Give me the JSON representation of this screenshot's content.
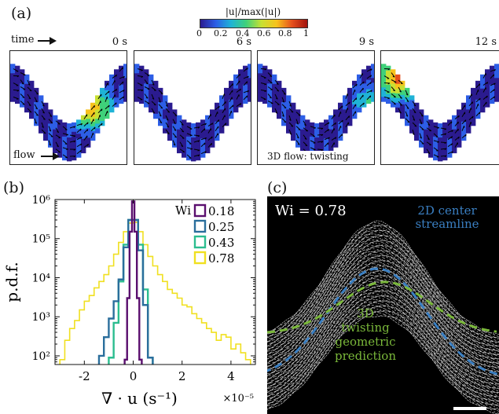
{
  "panel_a": {
    "label": "(a)",
    "colorbar": {
      "title": "|u|/max(|u|)",
      "ticks": [
        "0",
        "0.2",
        "0.4",
        "0.6",
        "0.8",
        "1"
      ],
      "colors": [
        "#2b1b8f",
        "#2d5ee6",
        "#1fb3d6",
        "#3fd17a",
        "#c8e032",
        "#f7c21c",
        "#e5501e",
        "#a1130e"
      ]
    },
    "time_label": "time",
    "flow_label": "flow",
    "frames": [
      {
        "time": "0 s",
        "caption": ""
      },
      {
        "time": "6 s",
        "caption": ""
      },
      {
        "time": "9 s",
        "caption": "3D flow: twisting"
      },
      {
        "time": "12 s",
        "caption": ""
      }
    ]
  },
  "panel_b": {
    "label": "(b)",
    "chart_data": {
      "type": "line",
      "title": "",
      "xlabel": "∇ · u (s⁻¹)",
      "x_scale_label": "×10⁻⁵",
      "ylabel": "p.d.f.",
      "xlim": [
        -3.2,
        5
      ],
      "ylim": [
        60,
        1000000
      ],
      "log_y": true,
      "x_ticks": [
        "-2",
        "0",
        "2",
        "4"
      ],
      "y_ticks": [
        "10²",
        "10³",
        "10⁴",
        "10⁵",
        "10⁶"
      ],
      "legend_title": "Wi",
      "legend_position": "top-right",
      "series": [
        {
          "name": "0.78",
          "color": "#f0e020",
          "x": [
            -2.9,
            -2.7,
            -2.5,
            -2.3,
            -2.1,
            -1.9,
            -1.7,
            -1.5,
            -1.3,
            -1.1,
            -0.9,
            -0.7,
            -0.5,
            -0.3,
            -0.1,
            0.1,
            0.3,
            0.5,
            0.7,
            0.9,
            1.1,
            1.3,
            1.5,
            1.7,
            1.9,
            2.1,
            2.3,
            2.5,
            2.7,
            2.9,
            3.1,
            3.3,
            3.5,
            3.7,
            3.9,
            4.1,
            4.3,
            4.5,
            4.7
          ],
          "y": [
            80,
            250,
            500,
            800,
            1500,
            2500,
            3500,
            5500,
            8000,
            12000,
            20000,
            40000,
            80000,
            150000,
            250000,
            260000,
            150000,
            70000,
            35000,
            20000,
            12000,
            8000,
            5000,
            4000,
            3000,
            2000,
            1800,
            1200,
            900,
            700,
            500,
            400,
            250,
            350,
            300,
            150,
            200,
            120,
            80
          ]
        },
        {
          "name": "0.43",
          "color": "#2bbd8f",
          "x": [
            -0.9,
            -0.7,
            -0.5,
            -0.3,
            -0.1,
            0.1,
            0.3,
            0.5,
            0.7
          ],
          "y": [
            90,
            700,
            8000,
            70000,
            300000,
            300000,
            70000,
            5000,
            90
          ]
        },
        {
          "name": "0.25",
          "color": "#2a6e9c",
          "x": [
            -1.3,
            -1.1,
            -0.9,
            -0.7,
            -0.5,
            -0.3,
            -0.1,
            0.1,
            0.3,
            0.5,
            0.7
          ],
          "y": [
            100,
            300,
            900,
            2500,
            9000,
            60000,
            300000,
            300000,
            50000,
            2000,
            90
          ]
        },
        {
          "name": "0.18",
          "color": "#5a0f6e",
          "x": [
            -0.3,
            -0.2,
            -0.1,
            0.0,
            0.1,
            0.2,
            0.3
          ],
          "y": [
            80,
            3000,
            150000,
            900000,
            150000,
            3000,
            80
          ]
        }
      ]
    }
  },
  "panel_c": {
    "label": "(c)",
    "wi_text": "Wi = 0.78",
    "center_label_line1": "2D center",
    "center_label_line2": "streamline",
    "center_color": "#3a7fc2",
    "pred_label_line1": "3D",
    "pred_label_line2": "twisting",
    "pred_label_line3": "geometric",
    "pred_label_line4": "prediction",
    "pred_color": "#7ab83a"
  }
}
